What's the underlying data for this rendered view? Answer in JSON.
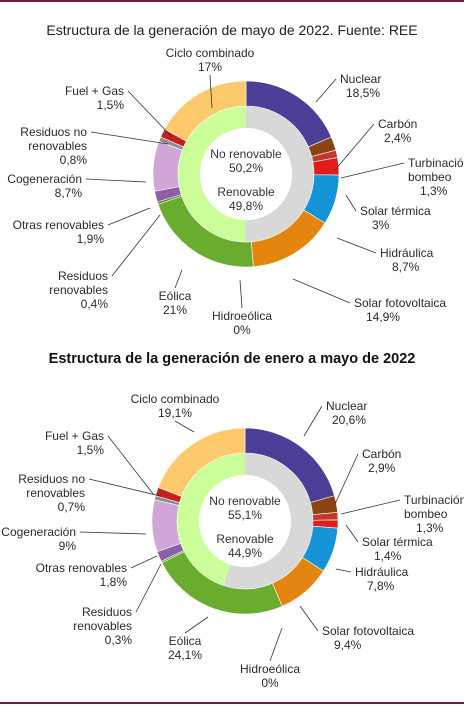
{
  "chart_data": [
    {
      "type": "pie",
      "title": "Estructura de la generación de mayo de 2022. Fuente: REE",
      "inner": [
        {
          "name": "No renovable",
          "label": "50,2%",
          "value": 50.2
        },
        {
          "name": "Renovable",
          "label": "49,8%",
          "value": 49.8
        }
      ],
      "slices": [
        {
          "name": "Nuclear",
          "label": "18,5%",
          "value": 18.5,
          "color": "#4c3d96",
          "group": "No renovable"
        },
        {
          "name": "Carbón",
          "label": "2,4%",
          "value": 2.4,
          "color": "#8a4311",
          "group": "No renovable"
        },
        {
          "name": "Turbinación bombeo",
          "label": "1,3%",
          "value": 1.3,
          "color": "#c0392b",
          "group": "No renovable"
        },
        {
          "name": "Solar térmica",
          "label": "3%",
          "value": 3.0,
          "color": "#e41b1b",
          "group": "Renovable"
        },
        {
          "name": "Hidráulica",
          "label": "8,7%",
          "value": 8.7,
          "color": "#1493d6",
          "group": "Renovable"
        },
        {
          "name": "Solar fotovoltaica",
          "label": "14,9%",
          "value": 14.9,
          "color": "#e4850f",
          "group": "Renovable"
        },
        {
          "name": "Hidroeólica",
          "label": "0%",
          "value": 0.0,
          "color": "#7fbf3f",
          "group": "Renovable"
        },
        {
          "name": "Eólica",
          "label": "21%",
          "value": 21.0,
          "color": "#6aac2e",
          "group": "Renovable"
        },
        {
          "name": "Residuos renovables",
          "label": "0,4%",
          "value": 0.4,
          "color": "#5b8f2d",
          "group": "Renovable"
        },
        {
          "name": "Otras renovables",
          "label": "1,9%",
          "value": 1.9,
          "color": "#8e5fa8",
          "group": "Renovable"
        },
        {
          "name": "Cogeneración",
          "label": "8,7%",
          "value": 8.7,
          "color": "#cfa6d6",
          "group": "No renovable"
        },
        {
          "name": "Residuos no renovables",
          "label": "0,8%",
          "value": 0.8,
          "color": "#8b8b8b",
          "group": "No renovable"
        },
        {
          "name": "Fuel + Gas",
          "label": "1,5%",
          "value": 1.5,
          "color": "#c81e1e",
          "group": "No renovable"
        },
        {
          "name": "Ciclo combinado",
          "label": "17%",
          "value": 17.0,
          "color": "#fcc96b",
          "group": "No renovable"
        }
      ]
    },
    {
      "type": "pie",
      "title": "Estructura de la generación de enero a mayo de 2022",
      "inner": [
        {
          "name": "No renovable",
          "label": "55,1%",
          "value": 55.1
        },
        {
          "name": "Renovable",
          "label": "44,9%",
          "value": 44.9
        }
      ],
      "slices": [
        {
          "name": "Nuclear",
          "label": "20,6%",
          "value": 20.6,
          "color": "#4c3d96",
          "group": "No renovable"
        },
        {
          "name": "Carbón",
          "label": "2,9%",
          "value": 2.9,
          "color": "#8a4311",
          "group": "No renovable"
        },
        {
          "name": "Turbinación bombeo",
          "label": "1,3%",
          "value": 1.3,
          "color": "#c0392b",
          "group": "No renovable"
        },
        {
          "name": "Solar térmica",
          "label": "1,4%",
          "value": 1.4,
          "color": "#e41b1b",
          "group": "Renovable"
        },
        {
          "name": "Hidráulica",
          "label": "7,8%",
          "value": 7.8,
          "color": "#1493d6",
          "group": "Renovable"
        },
        {
          "name": "Solar fotovoltaica",
          "label": "9,4%",
          "value": 9.4,
          "color": "#e4850f",
          "group": "Renovable"
        },
        {
          "name": "Hidroeólica",
          "label": "0%",
          "value": 0.0,
          "color": "#7fbf3f",
          "group": "Renovable"
        },
        {
          "name": "Eólica",
          "label": "24,1%",
          "value": 24.1,
          "color": "#6aac2e",
          "group": "Renovable"
        },
        {
          "name": "Residuos renovables",
          "label": "0,3%",
          "value": 0.3,
          "color": "#5b8f2d",
          "group": "Renovable"
        },
        {
          "name": "Otras renovables",
          "label": "1,8%",
          "value": 1.8,
          "color": "#8e5fa8",
          "group": "Renovable"
        },
        {
          "name": "Cogeneración",
          "label": "9%",
          "value": 9.0,
          "color": "#cfa6d6",
          "group": "No renovable"
        },
        {
          "name": "Residuos no renovables",
          "label": "0,7%",
          "value": 0.7,
          "color": "#8b8b8b",
          "group": "No renovable"
        },
        {
          "name": "Fuel + Gas",
          "label": "1,5%",
          "value": 1.5,
          "color": "#c81e1e",
          "group": "No renovable"
        },
        {
          "name": "Ciclo combinado",
          "label": "19,1%",
          "value": 19.1,
          "color": "#fcc96b",
          "group": "No renovable"
        }
      ]
    }
  ]
}
